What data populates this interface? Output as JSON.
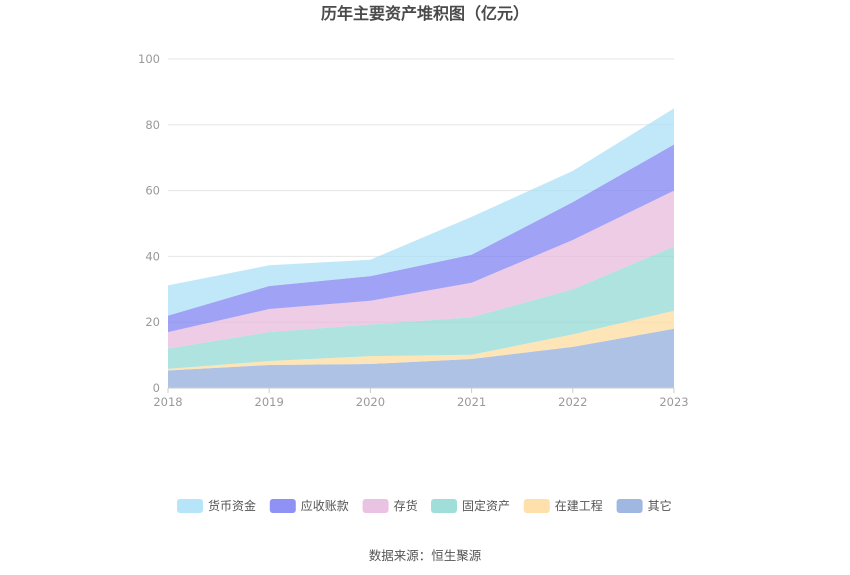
{
  "chart_data": {
    "type": "area",
    "stacked": true,
    "title": "历年主要资产堆积图（亿元）",
    "x": [
      "2018",
      "2019",
      "2020",
      "2021",
      "2022",
      "2023"
    ],
    "ylim": [
      0,
      100
    ],
    "yticks": [
      "0",
      "20",
      "40",
      "60",
      "80",
      "100"
    ],
    "grid": true,
    "legend_position": "bottom",
    "series": [
      {
        "name": "其它",
        "color": "#8faadc",
        "values": [
          5.3,
          7.0,
          7.3,
          8.8,
          12.5,
          18.0
        ]
      },
      {
        "name": "在建工程",
        "color": "#fddb9b",
        "values": [
          0.5,
          1.2,
          2.4,
          1.3,
          3.8,
          5.5
        ]
      },
      {
        "name": "固定资产",
        "color": "#8fd8d3",
        "values": [
          6.2,
          8.8,
          9.6,
          11.4,
          13.7,
          19.5
        ]
      },
      {
        "name": "存货",
        "color": "#e8b9dd",
        "values": [
          5.0,
          7.0,
          7.2,
          10.5,
          15.0,
          17.0
        ]
      },
      {
        "name": "应收账款",
        "color": "#7b7ef2",
        "values": [
          5.0,
          7.0,
          7.5,
          8.5,
          11.5,
          14.0
        ]
      },
      {
        "name": "货币资金",
        "color": "#a9dff7",
        "values": [
          9.2,
          6.3,
          5.0,
          11.5,
          9.5,
          11.0
        ]
      }
    ],
    "legend_order": [
      "货币资金",
      "应收账款",
      "存货",
      "固定资产",
      "在建工程",
      "其它"
    ]
  },
  "footer": {
    "source": "数据来源：恒生聚源"
  }
}
